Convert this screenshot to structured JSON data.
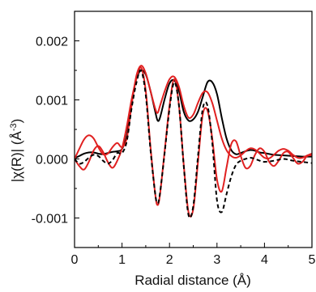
{
  "chart_data": {
    "type": "line",
    "xlabel": "Radial distance (Å)",
    "ylabel_parts": {
      "pre": "|",
      "chi": "χ",
      "mid": "(R)| (Å",
      "sup": "-3",
      "post": ")"
    },
    "xlim": [
      0,
      5
    ],
    "ylim": [
      -0.0015,
      0.0025
    ],
    "xticks": [
      0,
      1,
      2,
      3,
      4,
      5
    ],
    "xtick_labels": [
      "0",
      "1",
      "2",
      "3",
      "4",
      "5"
    ],
    "yticks": [
      -0.001,
      0.0,
      0.001,
      0.002
    ],
    "ytick_labels": [
      "-0.001",
      "0.000",
      "0.001",
      "0.002"
    ],
    "grid": false,
    "series": [
      {
        "color": "#000000",
        "style": "solid",
        "x": [
          0,
          0.1,
          0.2,
          0.3,
          0.4,
          0.5,
          0.6,
          0.7,
          0.8,
          0.9,
          1.0,
          1.1,
          1.2,
          1.3,
          1.4,
          1.5,
          1.6,
          1.7,
          1.75,
          1.8,
          1.9,
          2.0,
          2.1,
          2.2,
          2.3,
          2.4,
          2.5,
          2.6,
          2.7,
          2.8,
          2.9,
          3.0,
          3.1,
          3.2,
          3.3,
          3.4,
          3.5,
          3.6,
          3.7,
          3.8,
          3.9,
          4.0,
          4.2,
          4.4,
          4.6,
          4.8,
          5.0
        ],
        "y": [
          1e-05,
          5e-05,
          9e-05,
          0.00011,
          0.00011,
          9e-05,
          8e-05,
          0.0001,
          0.00012,
          0.00013,
          0.00017,
          0.0004,
          0.00095,
          0.00135,
          0.0015,
          0.00143,
          0.00115,
          0.0008,
          0.00065,
          0.0007,
          0.00102,
          0.00128,
          0.00133,
          0.00115,
          0.0008,
          0.00065,
          0.00067,
          0.0008,
          0.00105,
          0.0013,
          0.0013,
          0.0011,
          0.0007,
          0.00035,
          0.00015,
          8e-05,
          0.0001,
          0.00013,
          0.00015,
          0.00014,
          0.00011,
          0.0001,
          7e-05,
          6e-05,
          5e-05,
          4e-05,
          4e-05
        ]
      },
      {
        "color": "#e02020",
        "style": "solid",
        "x": [
          0,
          0.1,
          0.2,
          0.3,
          0.4,
          0.5,
          0.6,
          0.7,
          0.8,
          0.9,
          1.0,
          1.1,
          1.2,
          1.3,
          1.4,
          1.5,
          1.6,
          1.7,
          1.75,
          1.8,
          1.9,
          2.0,
          2.1,
          2.2,
          2.3,
          2.4,
          2.5,
          2.6,
          2.7,
          2.8,
          2.9,
          3.0,
          3.1,
          3.2,
          3.3,
          3.4,
          3.5,
          3.6,
          3.7,
          3.8,
          3.9,
          4.0,
          4.1,
          4.2,
          4.3,
          4.4,
          4.5,
          4.6,
          4.7,
          4.8,
          4.9,
          5.0
        ],
        "y": [
          0.0,
          0.00017,
          0.00033,
          0.0004,
          0.00035,
          0.0002,
          8e-05,
          9e-05,
          0.0002,
          0.00027,
          0.0002,
          0.00035,
          0.0009,
          0.0014,
          0.00158,
          0.00145,
          0.00115,
          0.00085,
          0.00078,
          0.0009,
          0.00115,
          0.00135,
          0.00139,
          0.00122,
          0.0009,
          0.0007,
          0.00075,
          0.00095,
          0.00112,
          0.00113,
          0.00095,
          0.00065,
          0.00035,
          0.00015,
          5e-05,
          2e-05,
          6e-05,
          0.00013,
          0.00018,
          0.00016,
          9e-05,
          2e-05,
          1e-05,
          7e-05,
          0.00014,
          0.00017,
          0.00014,
          7e-05,
          2e-05,
          2e-05,
          6e-05,
          9e-05
        ]
      },
      {
        "color": "#e02020",
        "style": "solid",
        "x": [
          0,
          0.1,
          0.2,
          0.3,
          0.4,
          0.5,
          0.6,
          0.7,
          0.8,
          0.9,
          1.0,
          1.1,
          1.2,
          1.3,
          1.4,
          1.5,
          1.6,
          1.7,
          1.75,
          1.8,
          1.9,
          2.0,
          2.1,
          2.2,
          2.3,
          2.4,
          2.5,
          2.6,
          2.7,
          2.8,
          2.9,
          3.0,
          3.1,
          3.2,
          3.3,
          3.4,
          3.5,
          3.6,
          3.7,
          3.8,
          3.9,
          4.0,
          4.1,
          4.2,
          4.3,
          4.4,
          4.5,
          4.6,
          4.7,
          4.8,
          4.9,
          5.0
        ],
        "y": [
          0.0,
          -0.00012,
          -0.00018,
          -5e-05,
          0.00014,
          0.00022,
          0.00012,
          -5e-05,
          -0.00015,
          -3e-05,
          0.00018,
          0.00055,
          0.001,
          0.00135,
          0.00155,
          0.00115,
          0.0002,
          -0.0006,
          -0.00078,
          -0.0006,
          0.00015,
          0.0009,
          0.00135,
          0.0009,
          -0.0001,
          -0.0009,
          -0.00085,
          -5e-05,
          0.00075,
          0.00082,
          0.00035,
          -0.00035,
          -0.00055,
          -0.00015,
          0.00025,
          0.0003,
          5e-05,
          -0.00015,
          -0.00012,
          7e-05,
          0.00018,
          0.00012,
          -5e-05,
          -0.00012,
          -3e-05,
          0.0001,
          0.00012,
          2e-05,
          -8e-05,
          -5e-05,
          5e-05,
          6e-05
        ]
      },
      {
        "color": "#000000",
        "style": "dashed",
        "x": [
          0,
          0.1,
          0.2,
          0.3,
          0.4,
          0.5,
          0.6,
          0.7,
          0.8,
          0.9,
          1.0,
          1.1,
          1.2,
          1.3,
          1.4,
          1.5,
          1.6,
          1.7,
          1.75,
          1.8,
          1.9,
          2.0,
          2.1,
          2.2,
          2.3,
          2.4,
          2.5,
          2.6,
          2.7,
          2.8,
          2.9,
          3.0,
          3.1,
          3.2,
          3.3,
          3.4,
          3.5,
          3.6,
          3.7,
          3.8,
          3.9,
          4.0,
          4.2,
          4.4,
          4.6,
          4.8,
          5.0
        ],
        "y": [
          0.0,
          -8e-05,
          -5e-05,
          2e-05,
          7e-05,
          5e-05,
          -3e-05,
          -8e-05,
          -2e-05,
          0.0001,
          0.0001,
          0.0003,
          0.00085,
          0.00128,
          0.0015,
          0.00108,
          0.00015,
          -0.0006,
          -0.00075,
          -0.00058,
          0.00012,
          0.00085,
          0.0013,
          0.0009,
          -0.00012,
          -0.00095,
          -0.0008,
          5e-05,
          0.00085,
          0.0009,
          0.00028,
          -0.0007,
          -0.0009,
          -0.0006,
          -0.0003,
          -0.0001,
          -3e-05,
          0.0,
          2e-05,
          0.0,
          -3e-05,
          -5e-05,
          -3e-05,
          0.0,
          -3e-05,
          -5e-05,
          -7e-05
        ]
      }
    ]
  }
}
